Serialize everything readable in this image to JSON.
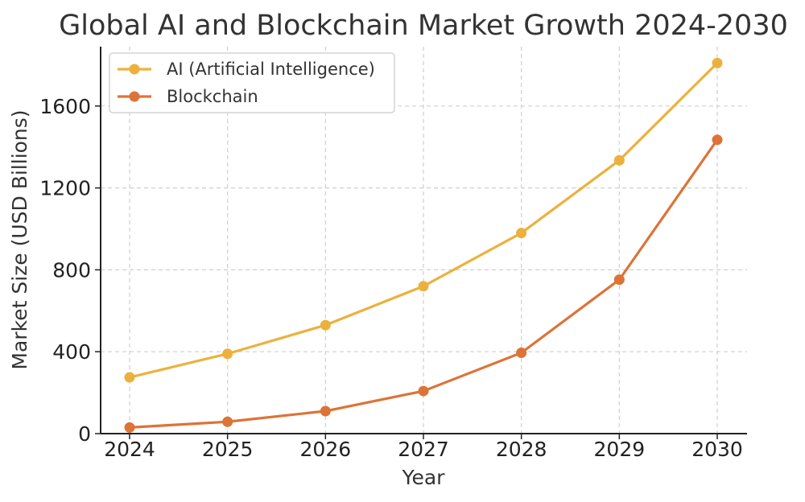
{
  "chart_data": {
    "type": "line",
    "title": "Global AI and Blockchain Market Growth 2024-2030",
    "xlabel": "Year",
    "ylabel": "Market Size (USD Billions)",
    "categories": [
      "2024",
      "2025",
      "2026",
      "2027",
      "2028",
      "2029",
      "2030"
    ],
    "yticks": [
      0,
      400,
      800,
      1200,
      1600
    ],
    "ylim": [
      0,
      1890
    ],
    "grid": true,
    "legend_position": "top-left",
    "series": [
      {
        "name": "AI (Artificial Intelligence)",
        "color": "#ecb13c",
        "values": [
          275,
          390,
          530,
          720,
          980,
          1335,
          1810
        ]
      },
      {
        "name": "Blockchain",
        "color": "#dd7337",
        "values": [
          30,
          58,
          110,
          208,
          395,
          752,
          1435
        ]
      }
    ]
  }
}
